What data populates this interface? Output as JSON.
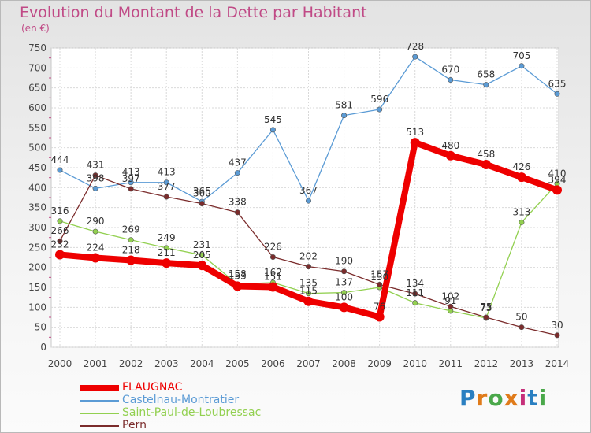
{
  "title": "Evolution du Montant de la Dette par Habitant",
  "unit": "(en €)",
  "brand": "Proxiti",
  "colors": {
    "title": "#c04a86",
    "axis_text": "#444444",
    "value_label": "#333333"
  },
  "chart_data": {
    "type": "line",
    "categories": [
      "2000",
      "2001",
      "2002",
      "2003",
      "2004",
      "2005",
      "2006",
      "2007",
      "2008",
      "2009",
      "2010",
      "2011",
      "2012",
      "2013",
      "2014"
    ],
    "ylim": [
      0,
      750
    ],
    "yticks": [
      0,
      50,
      100,
      150,
      200,
      250,
      300,
      350,
      400,
      450,
      500,
      550,
      600,
      650,
      700,
      750
    ],
    "grid": true,
    "legend_position": "bottom-left",
    "series": [
      {
        "name": "FLAUGNAC",
        "color": "#ee0000",
        "values": [
          232,
          224,
          218,
          211,
          205,
          153,
          151,
          115,
          100,
          76,
          513,
          480,
          458,
          426,
          394
        ]
      },
      {
        "name": "Castelnau-Montratier",
        "color": "#5b9bd5",
        "values": [
          444,
          398,
          413,
          413,
          365,
          437,
          545,
          367,
          581,
          596,
          728,
          670,
          658,
          705,
          635
        ]
      },
      {
        "name": "Saint-Paul-de-Loubressac",
        "color": "#92d050",
        "values": [
          316,
          290,
          269,
          249,
          231,
          158,
          162,
          135,
          137,
          150,
          111,
          91,
          73,
          313,
          410
        ]
      },
      {
        "name": "Pern",
        "color": "#7b2c2c",
        "values": [
          266,
          431,
          397,
          377,
          360,
          338,
          226,
          202,
          190,
          157,
          134,
          102,
          75,
          50,
          30
        ]
      }
    ]
  }
}
